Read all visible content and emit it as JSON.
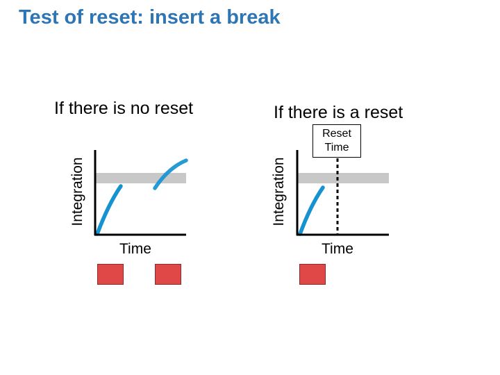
{
  "slide": {
    "title": "Test of reset: insert a break"
  },
  "left_panel": {
    "heading": "If there is no reset",
    "xlabel": "Time",
    "ylabel": "Integration"
  },
  "right_panel": {
    "heading": "If there is a reset",
    "xlabel": "Time",
    "ylabel": "Integration",
    "reset_label_line1": "Reset",
    "reset_label_line2": "Time"
  },
  "colors": {
    "title": "#2e75b6",
    "curve": "#1592d0",
    "threshold_band": "#c8c8c8",
    "block": "#e04848",
    "axis": "#000000"
  }
}
